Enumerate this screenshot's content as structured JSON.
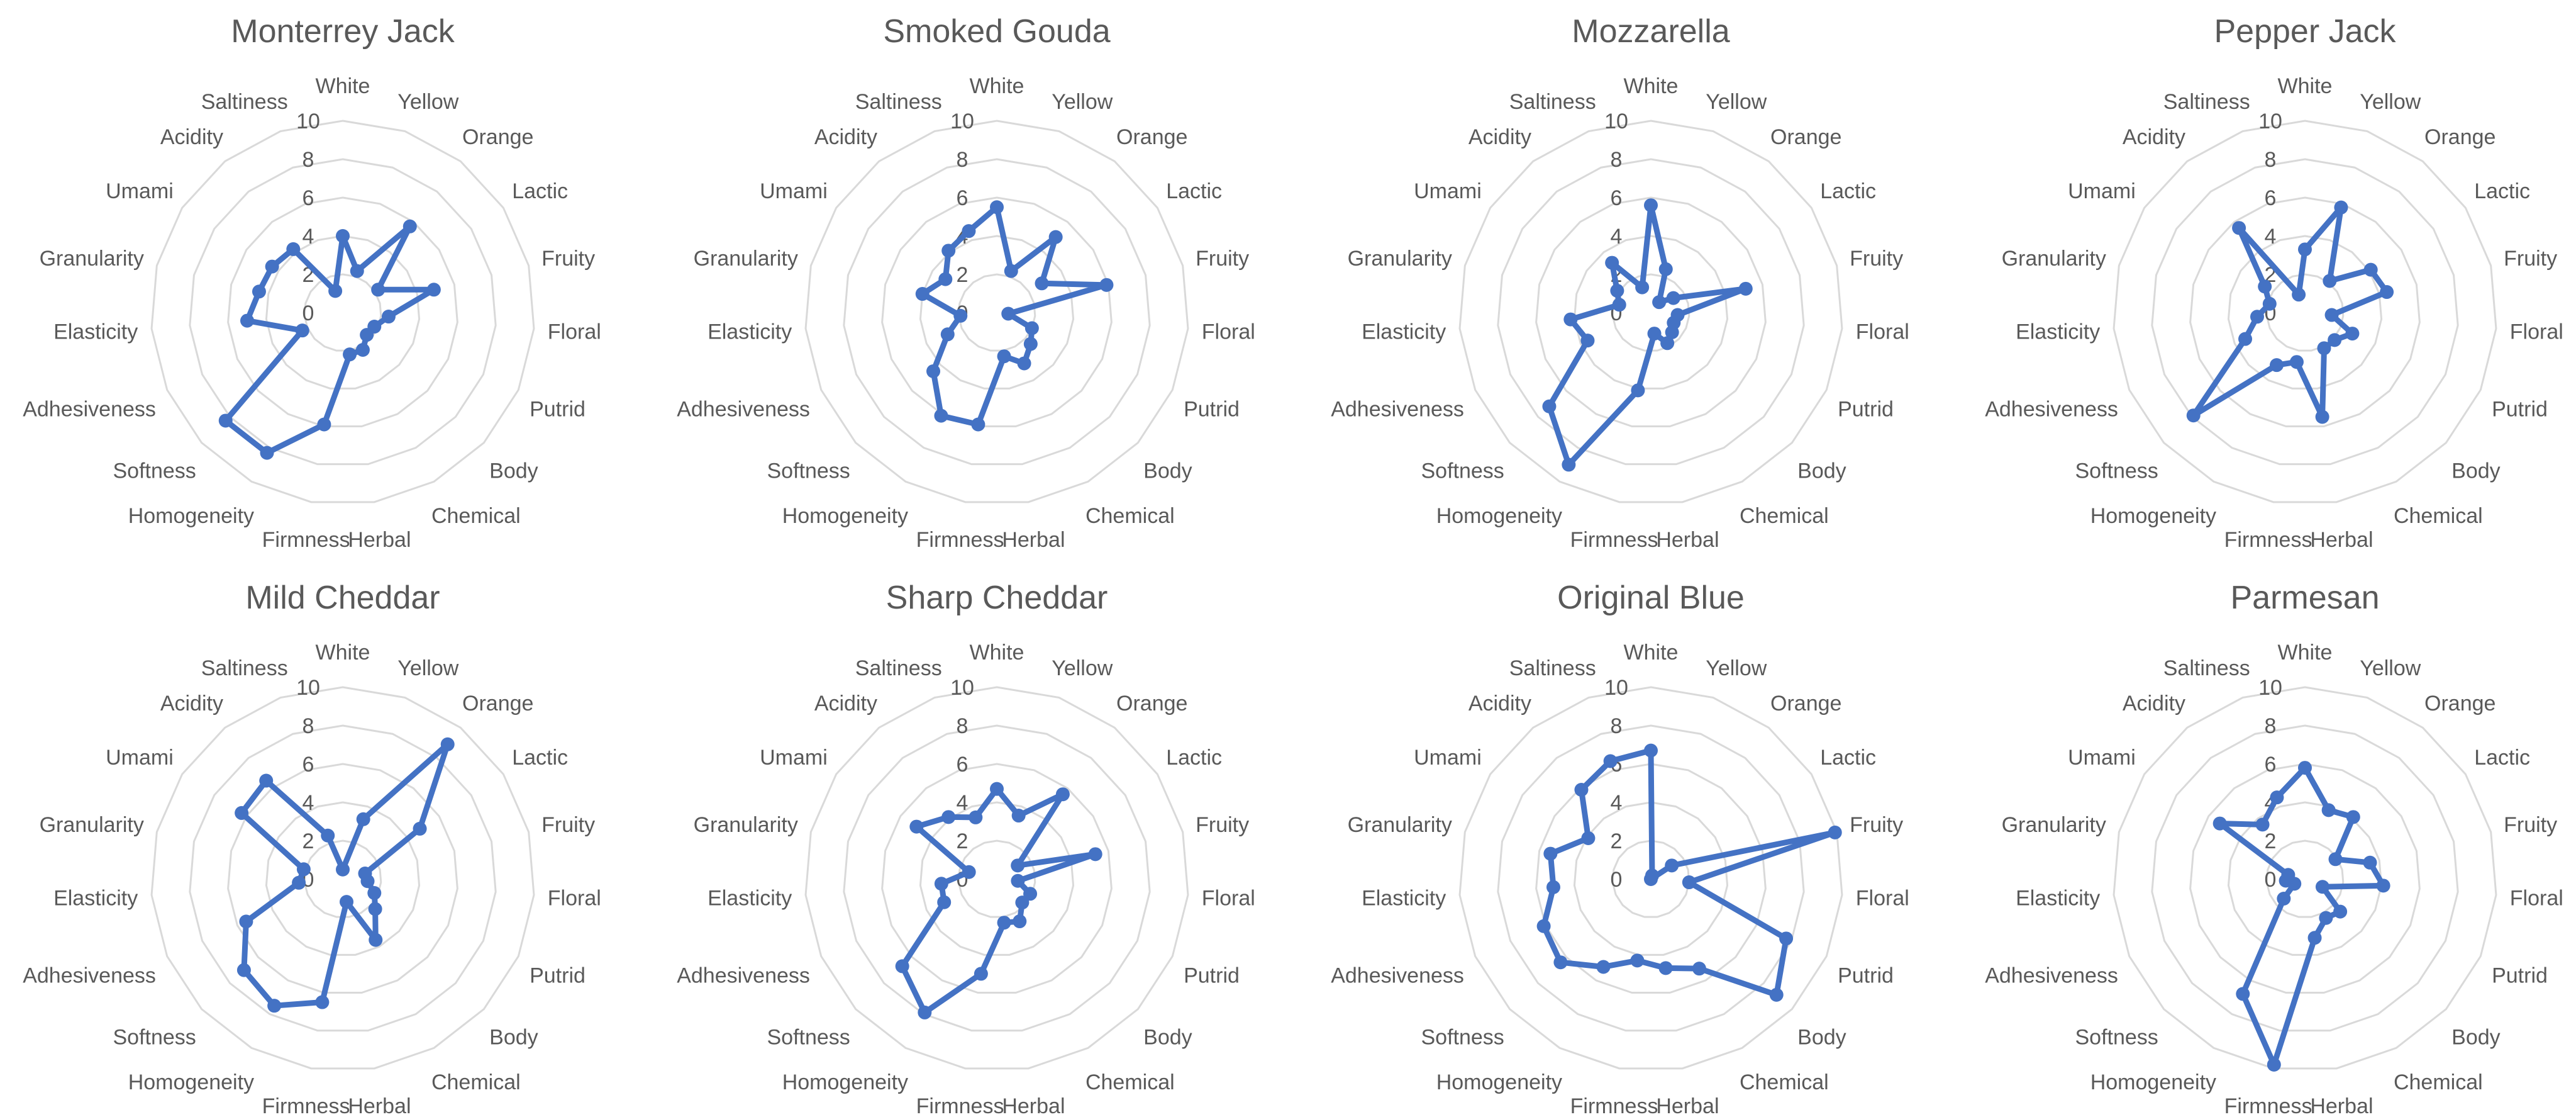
{
  "categories": [
    "White",
    "Yellow",
    "Orange",
    "Lactic",
    "Fruity",
    "Floral",
    "Putrid",
    "Body",
    "Chemical",
    "Herbal",
    "Firmness",
    "Homogeneity",
    "Softness",
    "Adhesiveness",
    "Elasticity",
    "Granularity",
    "Umami",
    "Acidity",
    "Saltiness"
  ],
  "style": {
    "line_color": "#4472C4",
    "grid_color": "#d9d9d9",
    "label_color": "#595959",
    "title_color": "#595959"
  },
  "chart_data": [
    {
      "type": "radar",
      "title": "Monterrey Jack",
      "ylim": [
        0,
        10
      ],
      "ticks": [
        0,
        2,
        4,
        6,
        8,
        10
      ],
      "grid": true,
      "legend": "none",
      "categories": [
        "White",
        "Yellow",
        "Orange",
        "Lactic",
        "Fruity",
        "Floral",
        "Putrid",
        "Body",
        "Chemical",
        "Herbal",
        "Firmness",
        "Homogeneity",
        "Softness",
        "Adhesiveness",
        "Elasticity",
        "Granularity",
        "Umami",
        "Acidity",
        "Saltiness"
      ],
      "values": [
        4,
        2.3,
        5.7,
        2.2,
        4.9,
        2.4,
        1.8,
        1.7,
        2.2,
        2.2,
        5.9,
        8.3,
        8.3,
        2.3,
        5,
        4.5,
        4.4,
        4.2,
        1.2
      ]
    },
    {
      "type": "radar",
      "title": "Smoked Gouda",
      "ylim": [
        0,
        10
      ],
      "ticks": [
        0,
        2,
        4,
        6,
        8,
        10
      ],
      "grid": true,
      "legend": "none",
      "categories": [
        "White",
        "Yellow",
        "Orange",
        "Lactic",
        "Fruity",
        "Floral",
        "Putrid",
        "Body",
        "Chemical",
        "Herbal",
        "Firmness",
        "Homogeneity",
        "Softness",
        "Adhesiveness",
        "Elasticity",
        "Granularity",
        "Umami",
        "Acidity",
        "Saltiness"
      ],
      "values": [
        5.5,
        2.3,
        5,
        2.8,
        5.9,
        0.6,
        2,
        2.4,
        3,
        2.3,
        5.9,
        6.1,
        4.5,
        2.8,
        1.9,
        4,
        3.2,
        4.1,
        4.5
      ]
    },
    {
      "type": "radar",
      "title": "Mozzarella",
      "ylim": [
        0,
        10
      ],
      "ticks": [
        0,
        2,
        4,
        6,
        8,
        10
      ],
      "grid": true,
      "legend": "none",
      "categories": [
        "White",
        "Yellow",
        "Orange",
        "Lactic",
        "Fruity",
        "Floral",
        "Putrid",
        "Body",
        "Chemical",
        "Herbal",
        "Firmness",
        "Homogeneity",
        "Softness",
        "Adhesiveness",
        "Elasticity",
        "Granularity",
        "Umami",
        "Acidity",
        "Saltiness"
      ],
      "values": [
        5.6,
        2.4,
        0.7,
        1.4,
        5.1,
        1.4,
        1.3,
        1.5,
        1.8,
        1.1,
        4.1,
        9,
        7.2,
        3.6,
        4.2,
        1.7,
        2.1,
        3.3,
        1.4
      ]
    },
    {
      "type": "radar",
      "title": "Pepper Jack",
      "ylim": [
        0,
        10
      ],
      "ticks": [
        0,
        2,
        4,
        6,
        8,
        10
      ],
      "grid": true,
      "legend": "none",
      "categories": [
        "White",
        "Yellow",
        "Orange",
        "Lactic",
        "Fruity",
        "Floral",
        "Putrid",
        "Body",
        "Chemical",
        "Herbal",
        "Firmness",
        "Homogeneity",
        "Softness",
        "Adhesiveness",
        "Elasticity",
        "Granularity",
        "Umami",
        "Acidity",
        "Saltiness"
      ],
      "values": [
        3.3,
        5.8,
        2.1,
        4.1,
        4.4,
        1.4,
        2.7,
        2.1,
        2.1,
        5.5,
        2.6,
        3.1,
        7.9,
        3.4,
        2.5,
        1.9,
        2.5,
        5.6,
        1
      ]
    },
    {
      "type": "radar",
      "title": "Mild Cheddar",
      "ylim": [
        0,
        10
      ],
      "ticks": [
        0,
        2,
        4,
        6,
        8,
        10
      ],
      "grid": true,
      "legend": "none",
      "categories": [
        "White",
        "Yellow",
        "Orange",
        "Lactic",
        "Fruity",
        "Floral",
        "Putrid",
        "Body",
        "Chemical",
        "Herbal",
        "Firmness",
        "Homogeneity",
        "Softness",
        "Adhesiveness",
        "Elasticity",
        "Granularity",
        "Umami",
        "Acidity",
        "Saltiness"
      ],
      "values": [
        0.5,
        3.3,
        8.9,
        4.8,
        1.2,
        1.3,
        1.8,
        2.3,
        3.6,
        1.2,
        6.5,
        7.5,
        7,
        5.5,
        2.3,
        2.1,
        6.3,
        6.5,
        2.4
      ]
    },
    {
      "type": "radar",
      "title": "Sharp Cheddar",
      "ylim": [
        0,
        10
      ],
      "ticks": [
        0,
        2,
        4,
        6,
        8,
        10
      ],
      "grid": true,
      "legend": "none",
      "categories": [
        "White",
        "Yellow",
        "Orange",
        "Lactic",
        "Fruity",
        "Floral",
        "Putrid",
        "Body",
        "Chemical",
        "Herbal",
        "Firmness",
        "Homogeneity",
        "Softness",
        "Adhesiveness",
        "Elasticity",
        "Granularity",
        "Umami",
        "Acidity",
        "Saltiness"
      ],
      "values": [
        4.7,
        3.5,
        5.6,
        1.3,
        5.3,
        1.1,
        1.9,
        1.8,
        2.5,
        2.3,
        5,
        7.9,
        6.7,
        3,
        2.9,
        1.5,
        5,
        4.1,
        3.4
      ]
    },
    {
      "type": "radar",
      "title": "Original Blue",
      "ylim": [
        0,
        10
      ],
      "ticks": [
        0,
        2,
        4,
        6,
        8,
        10
      ],
      "grid": true,
      "legend": "none",
      "categories": [
        "White",
        "Yellow",
        "Orange",
        "Lactic",
        "Fruity",
        "Floral",
        "Putrid",
        "Body",
        "Chemical",
        "Herbal",
        "Firmness",
        "Homogeneity",
        "Softness",
        "Adhesiveness",
        "Elasticity",
        "Granularity",
        "Umami",
        "Acidity",
        "Saltiness"
      ],
      "values": [
        6.7,
        0.2,
        0,
        1.3,
        9.9,
        2,
        7.7,
        8.9,
        5.3,
        4.7,
        4.3,
        5.2,
        6.4,
        6.1,
        5.1,
        5.4,
        3.9,
        5.9,
        6.5
      ]
    },
    {
      "type": "radar",
      "title": "Parmesan",
      "ylim": [
        0,
        10
      ],
      "ticks": [
        0,
        2,
        4,
        6,
        8,
        10
      ],
      "grid": true,
      "legend": "none",
      "categories": [
        "White",
        "Yellow",
        "Orange",
        "Lactic",
        "Fruity",
        "Floral",
        "Putrid",
        "Body",
        "Chemical",
        "Herbal",
        "Firmness",
        "Homogeneity",
        "Softness",
        "Adhesiveness",
        "Elasticity",
        "Granularity",
        "Umami",
        "Acidity",
        "Saltiness"
      ],
      "values": [
        5.8,
        3.8,
        4.1,
        1.9,
        3.5,
        4.1,
        1,
        2.5,
        2.3,
        3.1,
        9.8,
        6.8,
        1.5,
        0.6,
        1,
        0.9,
        5.3,
        3.6,
        4.5
      ]
    }
  ]
}
